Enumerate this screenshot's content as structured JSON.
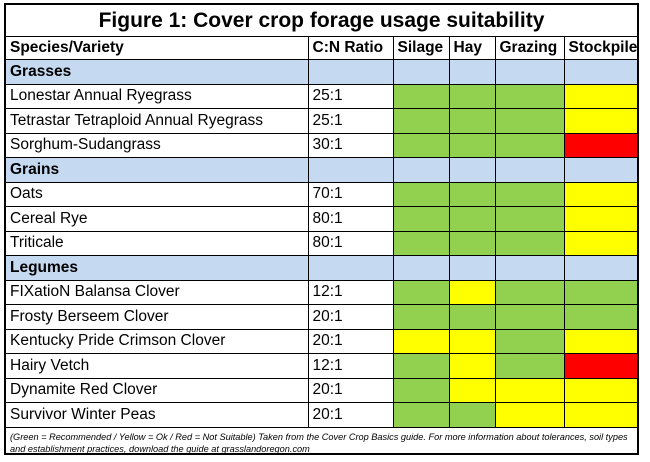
{
  "title": "Figure 1: Cover crop forage usage suitability",
  "headers": [
    "Species/Variety",
    "C:N Ratio",
    "Silage",
    "Hay",
    "Grazing",
    "Stockpile"
  ],
  "colors": {
    "green": "#92d050",
    "yellow": "#ffff00",
    "red": "#ff0000",
    "group": "#c5d9f1"
  },
  "groups": [
    {
      "name": "Grasses",
      "rows": [
        {
          "species": "Lonestar Annual Ryegrass",
          "cn": "25:1",
          "ratings": [
            "green",
            "green",
            "green",
            "yellow"
          ]
        },
        {
          "species": "Tetrastar Tetraploid Annual Ryegrass",
          "cn": "25:1",
          "ratings": [
            "green",
            "green",
            "green",
            "yellow"
          ]
        },
        {
          "species": "Sorghum-Sudangrass",
          "cn": "30:1",
          "ratings": [
            "green",
            "green",
            "green",
            "red"
          ]
        }
      ]
    },
    {
      "name": "Grains",
      "rows": [
        {
          "species": "Oats",
          "cn": "70:1",
          "ratings": [
            "green",
            "green",
            "green",
            "yellow"
          ]
        },
        {
          "species": "Cereal Rye",
          "cn": "80:1",
          "ratings": [
            "green",
            "green",
            "green",
            "yellow"
          ]
        },
        {
          "species": "Triticale",
          "cn": "80:1",
          "ratings": [
            "green",
            "green",
            "green",
            "yellow"
          ]
        }
      ]
    },
    {
      "name": "Legumes",
      "rows": [
        {
          "species": "FIXatioN Balansa Clover",
          "cn": "12:1",
          "ratings": [
            "green",
            "yellow",
            "green",
            "green"
          ]
        },
        {
          "species": "Frosty Berseem Clover",
          "cn": "20:1",
          "ratings": [
            "green",
            "green",
            "green",
            "green"
          ]
        },
        {
          "species": "Kentucky Pride Crimson Clover",
          "cn": "20:1",
          "ratings": [
            "yellow",
            "yellow",
            "green",
            "yellow"
          ]
        },
        {
          "species": "Hairy Vetch",
          "cn": "12:1",
          "ratings": [
            "green",
            "yellow",
            "green",
            "red"
          ]
        },
        {
          "species": "Dynamite Red Clover",
          "cn": "20:1",
          "ratings": [
            "green",
            "yellow",
            "yellow",
            "yellow"
          ]
        },
        {
          "species": "Survivor Winter Peas",
          "cn": "20:1",
          "ratings": [
            "green",
            "green",
            "yellow",
            "yellow"
          ]
        }
      ]
    }
  ],
  "footnote": "(Green = Recommended / Yellow = Ok / Red = Not Suitable) Taken from the Cover Crop Basics guide. For more information about tolerances, soil types and establishment practices, download the guide at grasslandoregon.com"
}
